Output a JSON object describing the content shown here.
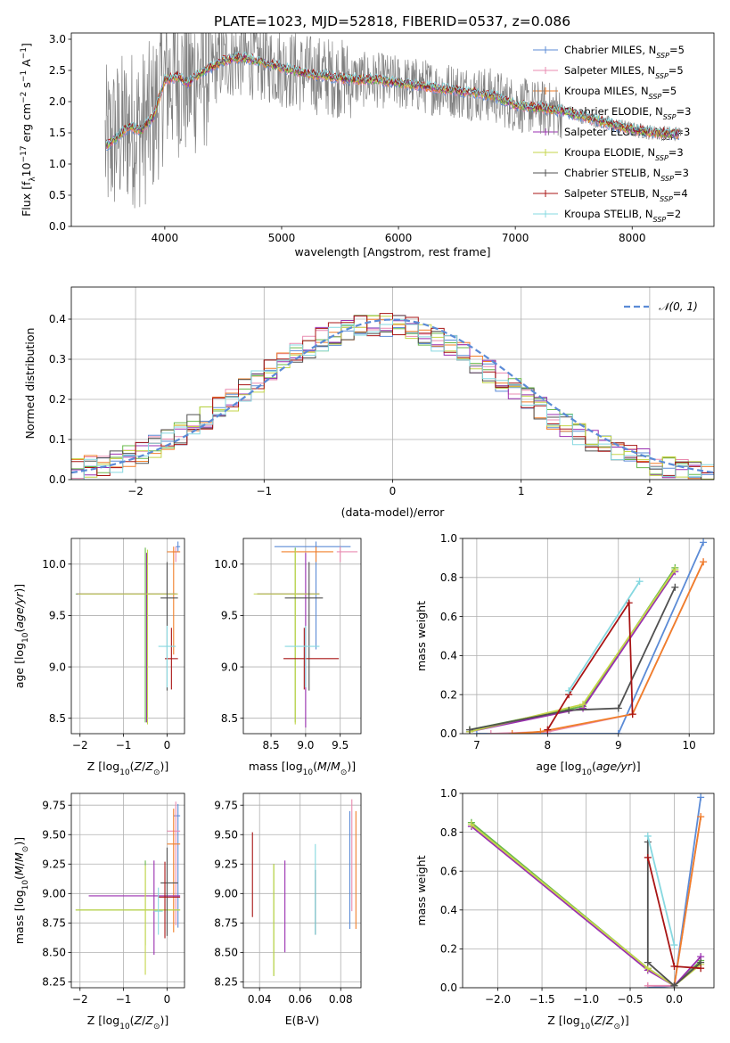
{
  "figure": {
    "title": "PLATE=1023, MJD=52818, FIBERID=0537, z=0.086",
    "colors": {
      "blue": "#5b8bd6",
      "pink": "#e98bb0",
      "orange": "#f07f2a",
      "green": "#68b84a",
      "purple": "#9a2fb0",
      "yellowgreen": "#c4d64a",
      "darkgray": "#505050",
      "darkred": "#a81515",
      "cyan": "#86d8e0",
      "spectrum": "#808080"
    }
  },
  "legend_labels": [
    "Chabrier MILES, N_SSP=5",
    "Salpeter MILES, N_SSP=5",
    "Kroupa MILES, N_SSP=5",
    "Chabrier ELODIE, N_SSP=3",
    "Salpeter ELODIE, N_SSP=3",
    "Kroupa ELODIE, N_SSP=3",
    "Chabrier STELIB, N_SSP=3",
    "Salpeter STELIB, N_SSP=4",
    "Kroupa STELIB, N_SSP=2"
  ],
  "legend_display": [
    {
      "pre": "Chabrier MILES, N",
      "sub": "SSP",
      "post": "=5"
    },
    {
      "pre": "Salpeter MILES, N",
      "sub": "SSP",
      "post": "=5"
    },
    {
      "pre": "Kroupa MILES, N",
      "sub": "SSP",
      "post": "=5"
    },
    {
      "pre": "Chabrier ELODIE, N",
      "sub": "SSP",
      "post": "=3"
    },
    {
      "pre": "Salpeter ELODIE, N",
      "sub": "SSP",
      "post": "=3"
    },
    {
      "pre": "Kroupa ELODIE, N",
      "sub": "SSP",
      "post": "=3"
    },
    {
      "pre": "Chabrier STELIB, N",
      "sub": "SSP",
      "post": "=3"
    },
    {
      "pre": "Salpeter STELIB, N",
      "sub": "SSP",
      "post": "=4"
    },
    {
      "pre": "Kroupa STELIB, N",
      "sub": "SSP",
      "post": "=2"
    }
  ],
  "model_colors": [
    "#5b8bd6",
    "#e98bb0",
    "#f07f2a",
    "#68b84a",
    "#9a2fb0",
    "#c4d64a",
    "#505050",
    "#a81515",
    "#86d8e0"
  ],
  "chart_data": [
    {
      "id": "spectrum",
      "type": "line",
      "xlabel": "wavelength [Angstrom, rest frame]",
      "ylabel_parts": [
        "Flux [f",
        "λ",
        "10",
        "−17",
        " erg cm",
        "−2",
        " s",
        "−1",
        " A",
        "−1",
        "]"
      ],
      "xlim": [
        3200,
        8700
      ],
      "ylim": [
        0,
        3.1
      ],
      "xticks": [
        4000,
        5000,
        6000,
        7000,
        8000
      ],
      "yticks": [
        0.0,
        0.5,
        1.0,
        1.5,
        2.0,
        2.5,
        3.0
      ],
      "ytick_labels": [
        "0.0",
        "0.5",
        "1.0",
        "1.5",
        "2.0",
        "2.5",
        "3.0"
      ],
      "model_continuum": {
        "x": [
          3500,
          3600,
          3700,
          3800,
          3900,
          4000,
          4100,
          4200,
          4300,
          4400,
          4500,
          4600,
          4700,
          4800,
          4900,
          5000,
          5200,
          5400,
          5600,
          5800,
          6000,
          6200,
          6400,
          6600,
          6800,
          7000,
          7200,
          7400,
          7600,
          7800,
          8000,
          8200,
          8400
        ],
        "y": [
          1.3,
          1.45,
          1.6,
          1.55,
          1.75,
          2.35,
          2.4,
          2.3,
          2.45,
          2.55,
          2.65,
          2.7,
          2.7,
          2.65,
          2.6,
          2.55,
          2.45,
          2.4,
          2.35,
          2.35,
          2.3,
          2.25,
          2.2,
          2.15,
          2.1,
          1.95,
          1.9,
          1.85,
          1.75,
          1.65,
          1.55,
          1.5,
          1.48
        ]
      },
      "grid": false
    },
    {
      "id": "residuals",
      "type": "step-histogram",
      "xlabel": "(data-model)/error",
      "ylabel": "Normed distribution",
      "xlim": [
        -2.5,
        2.5
      ],
      "ylim": [
        0,
        0.48
      ],
      "xticks": [
        -2,
        -1,
        0,
        1,
        2
      ],
      "xtick_labels": [
        "−2",
        "−1",
        "0",
        "1",
        "2"
      ],
      "yticks": [
        0.0,
        0.1,
        0.2,
        0.3,
        0.4
      ],
      "ytick_labels": [
        "0.0",
        "0.1",
        "0.2",
        "0.3",
        "0.4"
      ],
      "bin_width": 0.1,
      "legend": "𝒩(0, 1)",
      "grid": true
    },
    {
      "id": "age_vs_Z",
      "type": "errorbar",
      "xlabel": "Z [log10(Z/Z⊙)]",
      "ylabel": "age [log10(age/yr)]",
      "xlim": [
        -2.2,
        0.4
      ],
      "ylim": [
        8.35,
        10.25
      ],
      "xticks": [
        -2,
        -1,
        0
      ],
      "xtick_labels": [
        "−2",
        "−1",
        "0"
      ],
      "yticks": [
        8.5,
        9.0,
        9.5,
        10.0
      ],
      "ytick_labels": [
        "8.5",
        "9.0",
        "9.5",
        "10.0"
      ],
      "points": [
        {
          "x": 0.25,
          "y": 10.17,
          "xerr": [
            0.05,
            0.05
          ],
          "yerr": [
            0.05,
            0.05
          ]
        },
        {
          "x": 0.2,
          "y": 10.12,
          "xerr": [
            0.1,
            0.1
          ],
          "yerr": [
            0.1,
            0.05
          ]
        },
        {
          "x": 0.15,
          "y": 10.12,
          "xerr": [
            0.15,
            0.15
          ],
          "yerr": [
            1.0,
            0.05
          ]
        },
        {
          "x": -0.5,
          "y": 9.71,
          "xerr": [
            1.6,
            0.7
          ],
          "yerr": [
            1.25,
            0.45
          ]
        },
        {
          "x": -0.47,
          "y": 9.71,
          "xerr": [
            1.6,
            0.7
          ],
          "yerr": [
            1.25,
            0.4
          ]
        },
        {
          "x": -0.45,
          "y": 9.71,
          "xerr": [
            1.6,
            0.7
          ],
          "yerr": [
            1.27,
            0.43
          ]
        },
        {
          "x": 0.0,
          "y": 9.67,
          "xerr": [
            0.15,
            0.25
          ],
          "yerr": [
            0.9,
            0.35
          ]
        },
        {
          "x": 0.1,
          "y": 9.08,
          "xerr": [
            0.15,
            0.15
          ],
          "yerr": [
            0.3,
            0.3
          ]
        },
        {
          "x": 0.0,
          "y": 9.2,
          "xerr": [
            0.2,
            0.2
          ],
          "yerr": [
            0.4,
            0.2
          ]
        }
      ],
      "grid": true
    },
    {
      "id": "age_vs_mass",
      "type": "errorbar",
      "xlabel": "mass [log10(M/M⊙)]",
      "ylabel": "",
      "xlim": [
        8.1,
        9.8
      ],
      "ylim": [
        8.35,
        10.25
      ],
      "xticks": [
        8.5,
        9.0,
        9.5
      ],
      "xtick_labels": [
        "8.5",
        "9.0",
        "9.5"
      ],
      "yticks": [
        8.5,
        9.0,
        9.5,
        10.0
      ],
      "ytick_labels": [
        "8.5",
        "9.0",
        "9.5",
        "10.0"
      ],
      "points": [
        {
          "x": 9.15,
          "y": 10.17,
          "xerr": [
            0.6,
            0.5
          ],
          "yerr": [
            1.0,
            0.05
          ]
        },
        {
          "x": 9.5,
          "y": 10.12,
          "xerr": [
            0.05,
            0.25
          ],
          "yerr": [
            0.1,
            0.05
          ]
        },
        {
          "x": 9.15,
          "y": 10.12,
          "xerr": [
            0.5,
            0.25
          ],
          "yerr": [
            0.1,
            0.05
          ]
        },
        {
          "x": 8.85,
          "y": 9.71,
          "xerr": [
            0.55,
            0.35
          ],
          "yerr": [
            1.25,
            0.45
          ]
        },
        {
          "x": 9.0,
          "y": 9.71,
          "xerr": [
            0.7,
            0.2
          ],
          "yerr": [
            1.3,
            0.4
          ]
        },
        {
          "x": 8.85,
          "y": 9.71,
          "xerr": [
            0.6,
            0.35
          ],
          "yerr": [
            1.27,
            0.43
          ]
        },
        {
          "x": 9.05,
          "y": 9.67,
          "xerr": [
            0.35,
            0.2
          ],
          "yerr": [
            0.9,
            0.35
          ]
        },
        {
          "x": 8.98,
          "y": 9.08,
          "xerr": [
            0.3,
            0.5
          ],
          "yerr": [
            0.3,
            0.3
          ]
        },
        {
          "x": 9.0,
          "y": 9.2,
          "xerr": [
            0.3,
            0.2
          ],
          "yerr": [
            0.4,
            0.2
          ]
        }
      ],
      "grid": true
    },
    {
      "id": "weight_vs_age",
      "type": "line",
      "xlabel": "age [log10(age/yr)]",
      "ylabel": "mass weight",
      "xlim": [
        6.8,
        10.35
      ],
      "ylim": [
        0.0,
        1.0
      ],
      "xticks": [
        7,
        8,
        9,
        10
      ],
      "xtick_labels": [
        "7",
        "8",
        "9",
        "10"
      ],
      "yticks": [
        0.0,
        0.2,
        0.4,
        0.6,
        0.8,
        1.0
      ],
      "ytick_labels": [
        "0.0",
        "0.2",
        "0.4",
        "0.6",
        "0.8",
        "1.0"
      ],
      "series": [
        {
          "x": [
            7.0,
            8.0,
            9.0,
            10.2
          ],
          "y": [
            0.0,
            0.0,
            0.0,
            0.98
          ]
        },
        {
          "x": [
            7.2,
            8.0,
            9.2,
            10.2
          ],
          "y": [
            0.0,
            0.01,
            0.1,
            0.88
          ]
        },
        {
          "x": [
            7.5,
            7.9,
            9.2,
            10.2
          ],
          "y": [
            0.0,
            0.01,
            0.1,
            0.88
          ]
        },
        {
          "x": [
            6.9,
            8.5,
            9.8
          ],
          "y": [
            0.02,
            0.14,
            0.85
          ]
        },
        {
          "x": [
            6.9,
            8.5,
            9.8
          ],
          "y": [
            0.01,
            0.13,
            0.83
          ]
        },
        {
          "x": [
            6.9,
            8.5,
            9.8
          ],
          "y": [
            0.01,
            0.15,
            0.84
          ]
        },
        {
          "x": [
            6.9,
            8.3,
            9.0,
            9.8
          ],
          "y": [
            0.02,
            0.12,
            0.13,
            0.75
          ]
        },
        {
          "x": [
            8.0,
            8.3,
            9.15,
            9.2
          ],
          "y": [
            0.02,
            0.2,
            0.67,
            0.1
          ]
        },
        {
          "x": [
            8.3,
            9.3
          ],
          "y": [
            0.22,
            0.78
          ]
        }
      ],
      "grid": true
    },
    {
      "id": "mass_vs_Z",
      "type": "errorbar",
      "xlabel": "Z [log10(Z/Z⊙)]",
      "ylabel": "mass [log10(M/M⊙)]",
      "xlim": [
        -2.2,
        0.4
      ],
      "ylim": [
        8.2,
        9.85
      ],
      "xticks": [
        -2,
        -1,
        0
      ],
      "xtick_labels": [
        "−2",
        "−1",
        "0"
      ],
      "yticks": [
        8.25,
        8.5,
        8.75,
        9.0,
        9.25,
        9.5,
        9.75
      ],
      "ytick_labels": [
        "8.25",
        "8.50",
        "8.75",
        "9.00",
        "9.25",
        "9.50",
        "9.75"
      ],
      "points": [
        {
          "x": 0.25,
          "y": 9.66,
          "xerr": [
            0.1,
            0.05
          ],
          "yerr": [
            0.95,
            0.1
          ]
        },
        {
          "x": 0.2,
          "y": 9.53,
          "xerr": [
            0.2,
            0.1
          ],
          "yerr": [
            0.8,
            0.25
          ]
        },
        {
          "x": 0.15,
          "y": 9.42,
          "xerr": [
            0.15,
            0.15
          ],
          "yerr": [
            0.75,
            0.3
          ]
        },
        {
          "x": -0.5,
          "y": 8.86,
          "xerr": [
            1.6,
            0.8
          ],
          "yerr": [
            0.3,
            0.42
          ]
        },
        {
          "x": -0.3,
          "y": 8.98,
          "xerr": [
            1.5,
            0.6
          ],
          "yerr": [
            0.5,
            0.3
          ]
        },
        {
          "x": -0.5,
          "y": 8.86,
          "xerr": [
            1.6,
            0.8
          ],
          "yerr": [
            0.55,
            0.38
          ]
        },
        {
          "x": 0.0,
          "y": 9.09,
          "xerr": [
            0.15,
            0.25
          ],
          "yerr": [
            0.45,
            0.3
          ]
        },
        {
          "x": -0.05,
          "y": 8.97,
          "xerr": [
            0.15,
            0.35
          ],
          "yerr": [
            0.35,
            0.3
          ]
        },
        {
          "x": -0.2,
          "y": 8.85,
          "xerr": [
            0.1,
            0.1
          ],
          "yerr": [
            0.2,
            0.2
          ]
        }
      ],
      "grid": true
    },
    {
      "id": "mass_vs_ebv",
      "type": "errorbar",
      "xlabel": "E(B-V)",
      "ylabel": "",
      "xlim": [
        0.032,
        0.09
      ],
      "ylim": [
        8.2,
        9.85
      ],
      "xticks": [
        0.04,
        0.06,
        0.08
      ],
      "xtick_labels": [
        "0.04",
        "0.06",
        "0.08"
      ],
      "yticks": [
        8.25,
        8.5,
        8.75,
        9.0,
        9.25,
        9.5,
        9.75
      ],
      "ytick_labels": [
        "8.25",
        "8.50",
        "8.75",
        "9.00",
        "9.25",
        "9.50",
        "9.75"
      ],
      "points": [
        {
          "x": 0.0845,
          "y": 9.2,
          "xerr": [
            0,
            0
          ],
          "yerr": [
            0.5,
            0.5
          ]
        },
        {
          "x": 0.0855,
          "y": 9.35,
          "xerr": [
            0,
            0
          ],
          "yerr": [
            0.5,
            0.45
          ]
        },
        {
          "x": 0.0875,
          "y": 9.2,
          "xerr": [
            0,
            0
          ],
          "yerr": [
            0.5,
            0.5
          ]
        },
        {
          "x": 0.047,
          "y": 8.8,
          "xerr": [
            0,
            0
          ],
          "yerr": [
            0.5,
            0.45
          ]
        },
        {
          "x": 0.0525,
          "y": 8.9,
          "xerr": [
            0,
            0
          ],
          "yerr": [
            0.4,
            0.38
          ]
        },
        {
          "x": 0.047,
          "y": 8.8,
          "xerr": [
            0,
            0
          ],
          "yerr": [
            0.5,
            0.45
          ]
        },
        {
          "x": 0.0675,
          "y": 8.9,
          "xerr": [
            0,
            0
          ],
          "yerr": [
            0.25,
            0.3
          ]
        },
        {
          "x": 0.0365,
          "y": 9.15,
          "xerr": [
            0,
            0
          ],
          "yerr": [
            0.35,
            0.37
          ]
        },
        {
          "x": 0.0675,
          "y": 9.0,
          "xerr": [
            0,
            0
          ],
          "yerr": [
            0.35,
            0.42
          ]
        }
      ],
      "grid": true
    },
    {
      "id": "weight_vs_Z",
      "type": "line",
      "xlabel": "Z [log10(Z/Z⊙)]",
      "ylabel": "mass weight",
      "xlim": [
        -2.4,
        0.45
      ],
      "ylim": [
        0.0,
        1.0
      ],
      "xticks": [
        -2.0,
        -1.5,
        -1.0,
        -0.5,
        0.0
      ],
      "xtick_labels": [
        "−2.0",
        "−1.5",
        "−1.0",
        "−0.5",
        "0.0"
      ],
      "yticks": [
        0.0,
        0.2,
        0.4,
        0.6,
        0.8,
        1.0
      ],
      "ytick_labels": [
        "0.0",
        "0.2",
        "0.4",
        "0.6",
        "0.8",
        "1.0"
      ],
      "series": [
        {
          "x": [
            -0.3,
            0.0,
            0.3
          ],
          "y": [
            0.0,
            0.01,
            0.98
          ]
        },
        {
          "x": [
            -0.3,
            0.0,
            0.3
          ],
          "y": [
            0.01,
            0.01,
            0.88
          ]
        },
        {
          "x": [
            -0.3,
            0.0,
            0.3
          ],
          "y": [
            0.1,
            0.01,
            0.88
          ]
        },
        {
          "x": [
            -2.3,
            -0.3,
            0.0,
            0.3
          ],
          "y": [
            0.85,
            0.1,
            0.01,
            0.14
          ]
        },
        {
          "x": [
            -2.3,
            -0.3,
            0.0,
            0.3
          ],
          "y": [
            0.83,
            0.09,
            0.01,
            0.16
          ]
        },
        {
          "x": [
            -2.3,
            -0.3,
            0.0,
            0.3
          ],
          "y": [
            0.84,
            0.1,
            0.01,
            0.12
          ]
        },
        {
          "x": [
            -0.3,
            -0.3,
            0.0,
            0.3
          ],
          "y": [
            0.75,
            0.13,
            0.01,
            0.13
          ]
        },
        {
          "x": [
            -0.3,
            0.0,
            0.3
          ],
          "y": [
            0.67,
            0.11,
            0.1
          ]
        },
        {
          "x": [
            -0.3,
            0.0
          ],
          "y": [
            0.78,
            0.22
          ]
        }
      ],
      "grid": true
    }
  ]
}
